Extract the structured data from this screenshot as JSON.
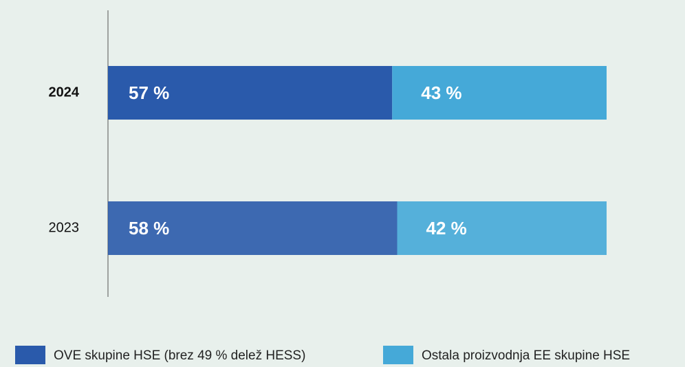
{
  "chart_data": {
    "type": "stacked_barh",
    "categories": [
      "2024",
      "2023"
    ],
    "series": [
      {
        "name": "OVE skupine HSE (brez 49 % delež HESS)",
        "color": "#2a5aab",
        "values": [
          57,
          58
        ],
        "value_labels": [
          "57 %",
          "58 %"
        ]
      },
      {
        "name": "Ostala proizvodnja EE skupine HSE",
        "color": "#45a9d8",
        "values": [
          43,
          42
        ],
        "value_labels": [
          "43 %",
          "42 %"
        ]
      }
    ],
    "legend": "bottom"
  }
}
